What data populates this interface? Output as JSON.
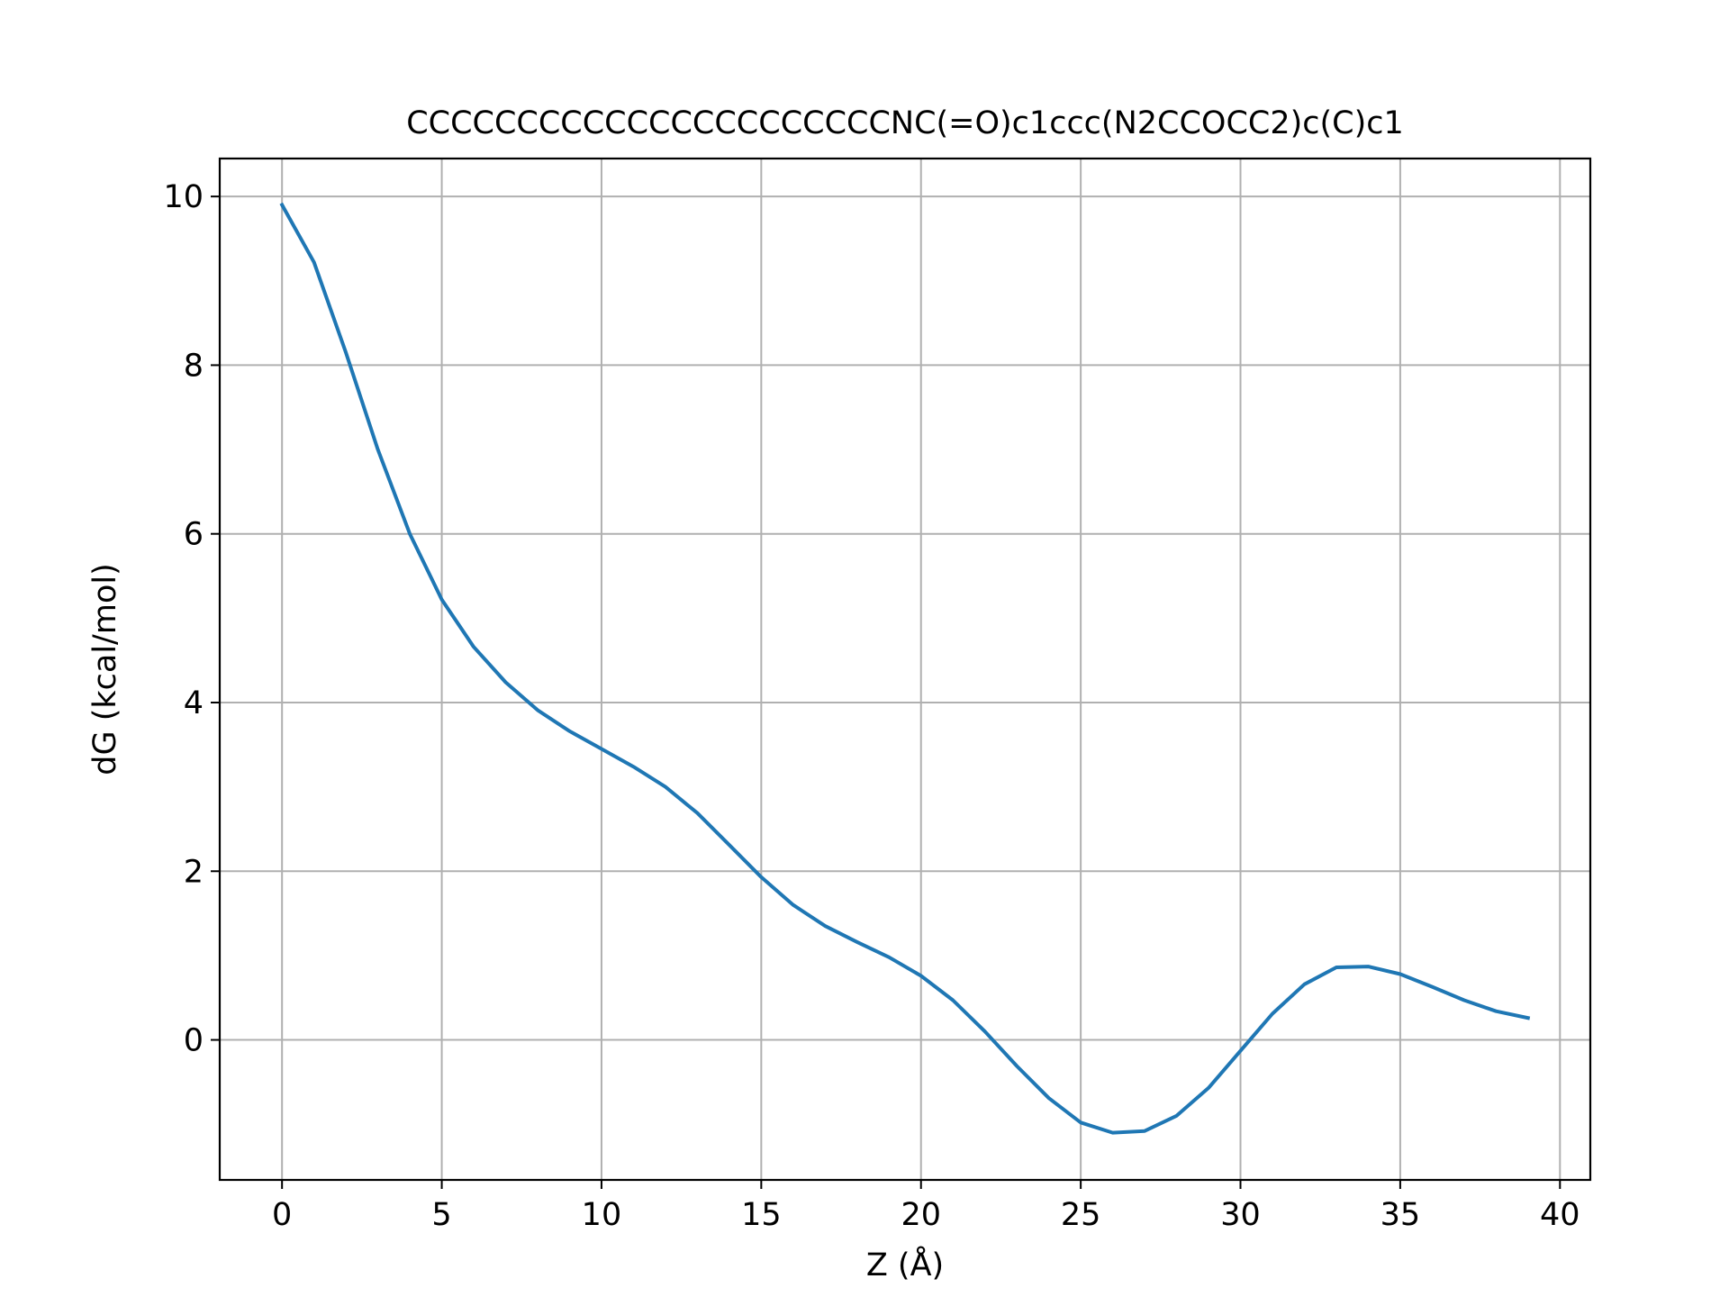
{
  "chart_data": {
    "type": "line",
    "title": "CCCCCCCCCCCCCCCCCCCCCCNC(=O)c1ccc(N2CCOCC2)c(C)c1",
    "xlabel": "Z (Å)",
    "ylabel": "dG (kcal/mol)",
    "xlim": [
      -1.95,
      40.95
    ],
    "ylim": [
      -1.66,
      10.45
    ],
    "xticks": [
      0,
      5,
      10,
      15,
      20,
      25,
      30,
      35,
      40
    ],
    "yticks": [
      0,
      2,
      4,
      6,
      8,
      10
    ],
    "grid": true,
    "series": [
      {
        "color": "#1f77b4",
        "x": [
          0,
          1,
          2,
          3,
          4,
          5,
          6,
          7,
          8,
          9,
          10,
          11,
          12,
          13,
          14,
          15,
          16,
          17,
          18,
          19,
          20,
          21,
          22,
          23,
          24,
          25,
          26,
          27,
          28,
          29,
          30,
          31,
          32,
          33,
          34,
          35,
          36,
          37,
          38,
          39
        ],
        "y": [
          9.9,
          9.22,
          8.15,
          7.0,
          6.0,
          5.22,
          4.66,
          4.24,
          3.91,
          3.66,
          3.45,
          3.24,
          3.0,
          2.69,
          2.31,
          1.93,
          1.6,
          1.35,
          1.16,
          0.98,
          0.76,
          0.47,
          0.1,
          -0.31,
          -0.69,
          -0.98,
          -1.1,
          -1.08,
          -0.9,
          -0.57,
          -0.13,
          0.31,
          0.66,
          0.86,
          0.87,
          0.78,
          0.63,
          0.47,
          0.34,
          0.26
        ]
      }
    ]
  }
}
